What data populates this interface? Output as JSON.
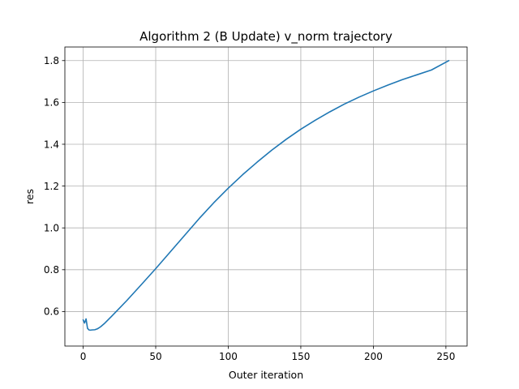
{
  "chart_data": {
    "type": "line",
    "title": "Algorithm 2 (B Update) v_norm trajectory",
    "xlabel": "Outer iteration",
    "ylabel": "res",
    "xlim": [
      -12.6,
      264.6
    ],
    "ylim": [
      0.435,
      1.865
    ],
    "xticks": [
      0,
      50,
      100,
      150,
      200,
      250
    ],
    "yticks": [
      0.6,
      0.8,
      1.0,
      1.2,
      1.4,
      1.6,
      1.8
    ],
    "xtick_labels": [
      "0",
      "50",
      "100",
      "150",
      "200",
      "250"
    ],
    "ytick_labels": [
      "0.6",
      "0.8",
      "1.0",
      "1.2",
      "1.4",
      "1.6",
      "1.8"
    ],
    "grid": true,
    "series": [
      {
        "color": "#1f77b4",
        "x": [
          0,
          1,
          2,
          3,
          4,
          5,
          6,
          8,
          10,
          12,
          15,
          20,
          30,
          40,
          50,
          60,
          70,
          80,
          90,
          100,
          110,
          120,
          130,
          140,
          150,
          160,
          170,
          180,
          190,
          200,
          210,
          220,
          230,
          240,
          252
        ],
        "y": [
          0.56,
          0.545,
          0.565,
          0.52,
          0.512,
          0.511,
          0.512,
          0.513,
          0.518,
          0.527,
          0.545,
          0.58,
          0.652,
          0.728,
          0.805,
          0.885,
          0.965,
          1.045,
          1.12,
          1.19,
          1.255,
          1.315,
          1.372,
          1.424,
          1.472,
          1.515,
          1.555,
          1.592,
          1.625,
          1.655,
          1.683,
          1.709,
          1.732,
          1.755,
          1.8
        ]
      }
    ]
  }
}
